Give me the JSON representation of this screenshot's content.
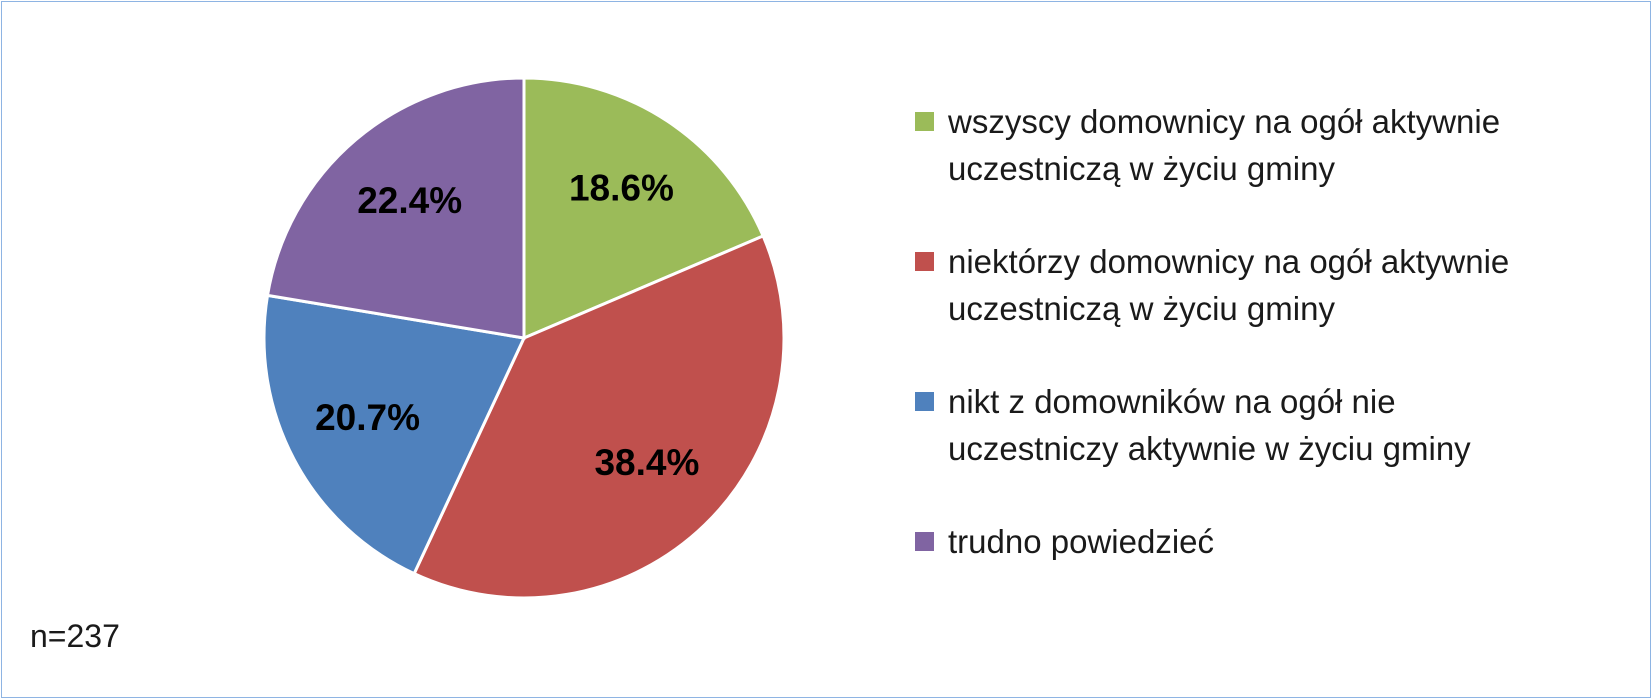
{
  "chart_data": {
    "type": "pie",
    "categories": [
      "wszyscy domownicy na ogół aktywnie uczestniczą w życiu gminy",
      "niektórzy domownicy na ogół aktywnie uczestniczą w życiu gminy",
      "nikt z domowników na ogół nie uczestniczy aktywnie w życiu gminy",
      "trudno powiedzieć"
    ],
    "values": [
      18.6,
      38.4,
      20.7,
      22.4
    ],
    "value_labels": [
      "18.6%",
      "38.4%",
      "20.7%",
      "22.4%"
    ],
    "colors": [
      "#9bbb59",
      "#c0504d",
      "#4f81bd",
      "#8064a2"
    ],
    "annotation": "n=237"
  }
}
